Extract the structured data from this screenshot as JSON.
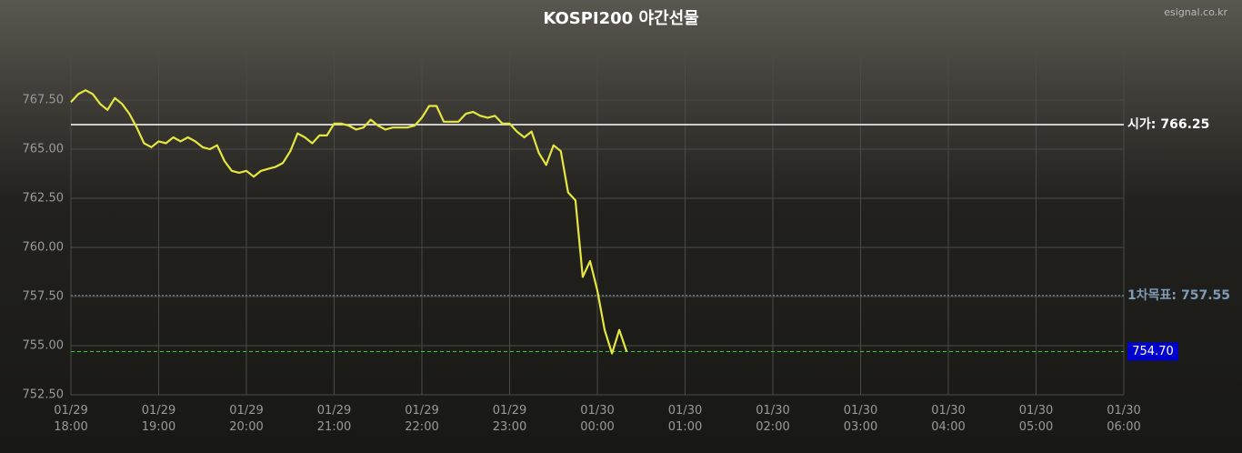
{
  "chart_data": {
    "type": "line",
    "title": "KOSPI200 야간선물",
    "watermark": "esignal.co.kr",
    "x": [
      "01/29 18:00",
      "01/29 18:05",
      "01/29 18:10",
      "01/29 18:15",
      "01/29 18:20",
      "01/29 18:25",
      "01/29 18:30",
      "01/29 18:35",
      "01/29 18:40",
      "01/29 18:45",
      "01/29 18:50",
      "01/29 18:55",
      "01/29 19:00",
      "01/29 19:05",
      "01/29 19:10",
      "01/29 19:15",
      "01/29 19:20",
      "01/29 19:25",
      "01/29 19:30",
      "01/29 19:35",
      "01/29 19:40",
      "01/29 19:45",
      "01/29 19:50",
      "01/29 19:55",
      "01/29 20:00",
      "01/29 20:05",
      "01/29 20:10",
      "01/29 20:15",
      "01/29 20:20",
      "01/29 20:25",
      "01/29 20:30",
      "01/29 20:35",
      "01/29 20:40",
      "01/29 20:45",
      "01/29 20:50",
      "01/29 20:55",
      "01/29 21:00",
      "01/29 21:05",
      "01/29 21:10",
      "01/29 21:15",
      "01/29 21:20",
      "01/29 21:25",
      "01/29 21:30",
      "01/29 21:35",
      "01/29 21:40",
      "01/29 21:45",
      "01/29 21:50",
      "01/29 21:55",
      "01/29 22:00",
      "01/29 22:05",
      "01/29 22:10",
      "01/29 22:15",
      "01/29 22:20",
      "01/29 22:25",
      "01/29 22:30",
      "01/29 22:35",
      "01/29 22:40",
      "01/29 22:45",
      "01/29 22:50",
      "01/29 22:55",
      "01/29 23:00",
      "01/29 23:05",
      "01/29 23:10",
      "01/29 23:15",
      "01/29 23:20",
      "01/29 23:25",
      "01/29 23:30",
      "01/29 23:35",
      "01/29 23:40",
      "01/29 23:45",
      "01/29 23:50",
      "01/29 23:55",
      "01/30 00:00",
      "01/30 00:05",
      "01/30 00:10",
      "01/30 00:15",
      "01/30 00:20"
    ],
    "series": [
      {
        "name": "KOSPI200",
        "color": "#e6e640",
        "values": [
          767.4,
          767.8,
          768.0,
          767.8,
          767.3,
          767.0,
          767.6,
          767.3,
          766.8,
          766.1,
          765.3,
          765.1,
          765.4,
          765.3,
          765.6,
          765.4,
          765.6,
          765.4,
          765.1,
          765.0,
          765.2,
          764.4,
          763.9,
          763.8,
          763.9,
          763.6,
          763.9,
          764.0,
          764.1,
          764.3,
          764.9,
          765.8,
          765.6,
          765.3,
          765.7,
          765.7,
          766.3,
          766.3,
          766.2,
          766.0,
          766.1,
          766.5,
          766.2,
          766.0,
          766.1,
          766.1,
          766.1,
          766.2,
          766.6,
          767.2,
          767.2,
          766.4,
          766.4,
          766.4,
          766.8,
          766.9,
          766.7,
          766.6,
          766.7,
          766.3,
          766.3,
          765.9,
          765.6,
          765.9,
          764.8,
          764.2,
          765.2,
          764.9,
          762.8,
          762.4,
          758.5,
          759.3,
          757.8,
          755.8,
          754.6,
          755.8,
          754.7
        ]
      }
    ],
    "xlim": [
      "01/29 18:00",
      "01/30 06:00"
    ],
    "xticks": [
      "01/29 18:00",
      "01/29 19:00",
      "01/29 20:00",
      "01/29 21:00",
      "01/29 22:00",
      "01/29 23:00",
      "01/30 00:00",
      "01/30 01:00",
      "01/30 02:00",
      "01/30 03:00",
      "01/30 04:00",
      "01/30 05:00",
      "01/30 06:00"
    ],
    "ylim": [
      752.5,
      770
    ],
    "yticks": [
      {
        "value": 752.5,
        "label": "752.50"
      },
      {
        "value": 755,
        "label": "755.00"
      },
      {
        "value": 757.5,
        "label": "757.50"
      },
      {
        "value": 760,
        "label": "760.00"
      },
      {
        "value": 762.5,
        "label": "762.50"
      },
      {
        "value": 765,
        "label": "765.00"
      },
      {
        "value": 767.5,
        "label": "767.50"
      }
    ],
    "grid": true,
    "reference_lines": [
      {
        "label": "시가:",
        "value": 766.25,
        "color": "#ffffff",
        "style": "solid"
      },
      {
        "label": "1차목표:",
        "value": 757.55,
        "color": "#7f9ab8",
        "style": "dotted"
      },
      {
        "value": 754.7,
        "value_label": "754.70",
        "color": "#33cc33",
        "style": "dashed"
      }
    ]
  }
}
